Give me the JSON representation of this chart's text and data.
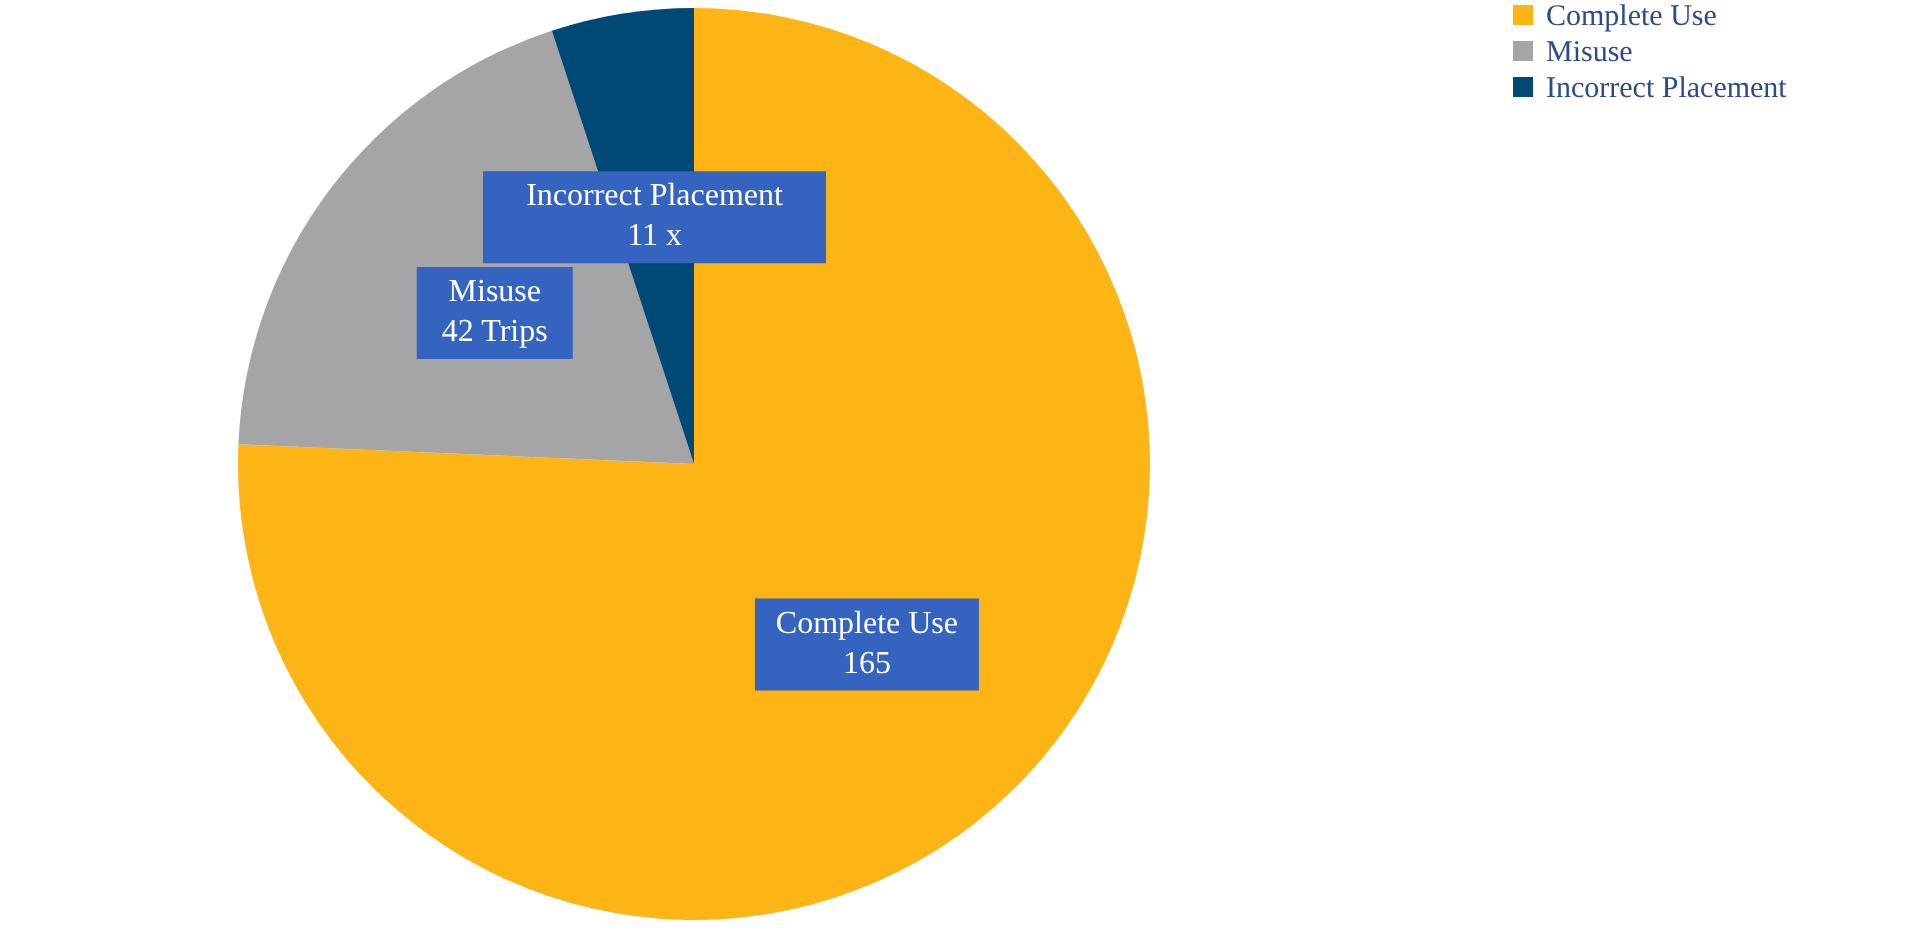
{
  "chart_data": {
    "type": "pie",
    "categories": [
      "Complete Use",
      "Misuse",
      "Incorrect Placement"
    ],
    "values": [
      165,
      42,
      11
    ],
    "colors": [
      "#fdb515",
      "#a5a5a7",
      "#004975"
    ],
    "value_labels": [
      "165",
      "42 Trips",
      "11 x"
    ],
    "legend": "right"
  }
}
